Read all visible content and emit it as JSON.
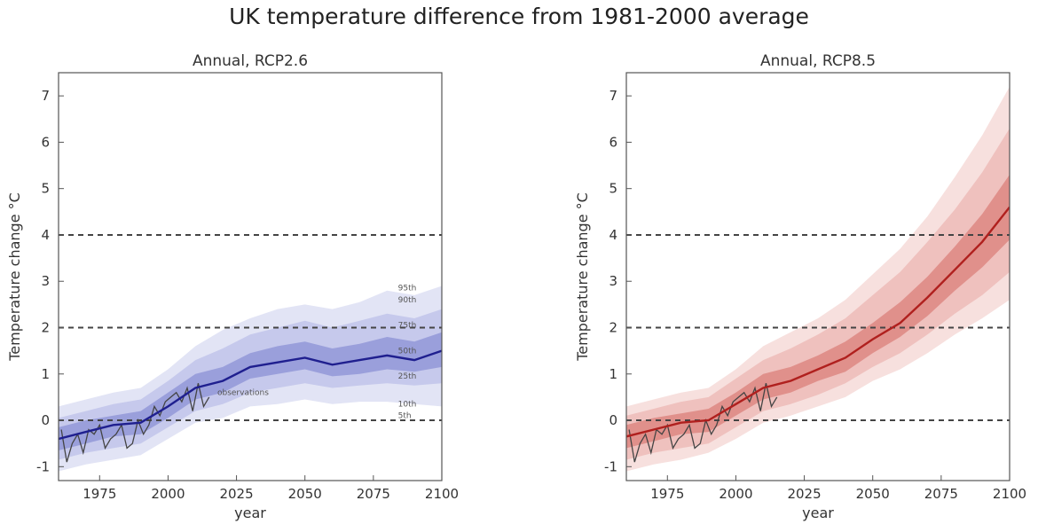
{
  "suptitle": "UK temperature difference from 1981-2000 average",
  "chart_data": [
    {
      "type": "area",
      "title": "Annual, RCP2.6",
      "xlabel": "year",
      "ylabel": "Temperature change °C",
      "xlim": [
        1960,
        2100
      ],
      "ylim": [
        -1.3,
        7.5
      ],
      "xticks": [
        1975,
        2000,
        2025,
        2050,
        2075,
        2100
      ],
      "yticks": [
        -1,
        0,
        1,
        2,
        3,
        4,
        5,
        6,
        7
      ],
      "reference_lines": [
        0,
        2,
        4
      ],
      "colors": {
        "line": "#1f1f8f",
        "outer": "#e2e4f5",
        "middle": "#c6c9ec",
        "inner": "#9a9fdb",
        "obs": "#444444"
      },
      "x": [
        1960,
        1970,
        1980,
        1990,
        2000,
        2010,
        2020,
        2030,
        2040,
        2050,
        2060,
        2070,
        2080,
        2090,
        2100
      ],
      "median": [
        -0.4,
        -0.25,
        -0.1,
        -0.05,
        0.3,
        0.7,
        0.85,
        1.15,
        1.25,
        1.35,
        1.2,
        1.3,
        1.4,
        1.3,
        1.5
      ],
      "p5": [
        -1.1,
        -0.95,
        -0.85,
        -0.75,
        -0.4,
        -0.05,
        0.05,
        0.3,
        0.35,
        0.45,
        0.35,
        0.4,
        0.4,
        0.35,
        0.3
      ],
      "p10": [
        -0.85,
        -0.7,
        -0.6,
        -0.5,
        -0.15,
        0.2,
        0.35,
        0.6,
        0.7,
        0.8,
        0.7,
        0.75,
        0.8,
        0.75,
        0.8
      ],
      "p25": [
        -0.65,
        -0.5,
        -0.35,
        -0.3,
        0.05,
        0.45,
        0.6,
        0.9,
        1.0,
        1.1,
        0.95,
        1.0,
        1.1,
        1.05,
        1.15
      ],
      "p75": [
        -0.15,
        0.0,
        0.1,
        0.2,
        0.6,
        1.0,
        1.15,
        1.45,
        1.6,
        1.7,
        1.55,
        1.65,
        1.8,
        1.7,
        1.9
      ],
      "p90": [
        0.05,
        0.2,
        0.35,
        0.45,
        0.85,
        1.3,
        1.55,
        1.85,
        2.0,
        2.15,
        2.0,
        2.15,
        2.3,
        2.2,
        2.4
      ],
      "p95": [
        0.3,
        0.45,
        0.6,
        0.7,
        1.1,
        1.6,
        1.95,
        2.2,
        2.4,
        2.5,
        2.4,
        2.55,
        2.8,
        2.7,
        2.9
      ],
      "observations": {
        "x": [
          1961,
          1963,
          1965,
          1967,
          1969,
          1971,
          1973,
          1975,
          1977,
          1979,
          1981,
          1983,
          1985,
          1987,
          1989,
          1991,
          1993,
          1995,
          1997,
          1999,
          2001,
          2003,
          2005,
          2007,
          2009,
          2011,
          2013,
          2015
        ],
        "y": [
          -0.2,
          -0.9,
          -0.5,
          -0.3,
          -0.7,
          -0.2,
          -0.3,
          -0.1,
          -0.6,
          -0.4,
          -0.3,
          -0.1,
          -0.6,
          -0.5,
          0.0,
          -0.3,
          -0.1,
          0.3,
          0.1,
          0.4,
          0.5,
          0.6,
          0.4,
          0.7,
          0.2,
          0.8,
          0.3,
          0.5
        ]
      },
      "annotations": [
        {
          "text": "95th",
          "x": 2084,
          "y": 2.8
        },
        {
          "text": "90th",
          "x": 2084,
          "y": 2.55
        },
        {
          "text": "75th",
          "x": 2084,
          "y": 2.0
        },
        {
          "text": "50th",
          "x": 2084,
          "y": 1.45
        },
        {
          "text": "25th",
          "x": 2084,
          "y": 0.9
        },
        {
          "text": "10th",
          "x": 2084,
          "y": 0.3
        },
        {
          "text": "5th",
          "x": 2084,
          "y": 0.05
        },
        {
          "text": "observations",
          "x": 2018,
          "y": 0.55
        }
      ]
    },
    {
      "type": "area",
      "title": "Annual, RCP8.5",
      "xlabel": "year",
      "ylabel": "Temperature change °C",
      "xlim": [
        1960,
        2100
      ],
      "ylim": [
        -1.3,
        7.5
      ],
      "xticks": [
        1975,
        2000,
        2025,
        2050,
        2075,
        2100
      ],
      "yticks": [
        -1,
        0,
        1,
        2,
        3,
        4,
        5,
        6,
        7
      ],
      "reference_lines": [
        0,
        2,
        4
      ],
      "colors": {
        "line": "#b0201e",
        "outer": "#f7e0de",
        "middle": "#efc1be",
        "inner": "#e0908b",
        "obs": "#444444"
      },
      "x": [
        1960,
        1970,
        1980,
        1990,
        2000,
        2010,
        2020,
        2030,
        2040,
        2050,
        2060,
        2070,
        2080,
        2090,
        2100
      ],
      "median": [
        -0.35,
        -0.2,
        -0.05,
        0.0,
        0.35,
        0.7,
        0.85,
        1.1,
        1.35,
        1.75,
        2.1,
        2.65,
        3.25,
        3.85,
        4.6
      ],
      "p5": [
        -1.1,
        -0.95,
        -0.85,
        -0.7,
        -0.4,
        -0.05,
        0.1,
        0.3,
        0.5,
        0.85,
        1.1,
        1.45,
        1.85,
        2.2,
        2.6
      ],
      "p10": [
        -0.85,
        -0.7,
        -0.6,
        -0.5,
        -0.15,
        0.2,
        0.35,
        0.55,
        0.8,
        1.15,
        1.45,
        1.85,
        2.3,
        2.7,
        3.2
      ],
      "p25": [
        -0.6,
        -0.45,
        -0.3,
        -0.25,
        0.1,
        0.45,
        0.6,
        0.85,
        1.05,
        1.45,
        1.8,
        2.25,
        2.8,
        3.3,
        3.9
      ],
      "p75": [
        -0.1,
        0.05,
        0.15,
        0.25,
        0.6,
        1.0,
        1.15,
        1.4,
        1.7,
        2.1,
        2.55,
        3.1,
        3.75,
        4.45,
        5.3
      ],
      "p90": [
        0.1,
        0.25,
        0.4,
        0.5,
        0.9,
        1.3,
        1.55,
        1.85,
        2.2,
        2.7,
        3.2,
        3.85,
        4.55,
        5.35,
        6.3
      ],
      "p95": [
        0.3,
        0.45,
        0.6,
        0.7,
        1.1,
        1.6,
        1.9,
        2.2,
        2.6,
        3.15,
        3.7,
        4.4,
        5.25,
        6.15,
        7.2
      ],
      "observations": {
        "x": [
          1961,
          1963,
          1965,
          1967,
          1969,
          1971,
          1973,
          1975,
          1977,
          1979,
          1981,
          1983,
          1985,
          1987,
          1989,
          1991,
          1993,
          1995,
          1997,
          1999,
          2001,
          2003,
          2005,
          2007,
          2009,
          2011,
          2013,
          2015
        ],
        "y": [
          -0.2,
          -0.9,
          -0.5,
          -0.3,
          -0.7,
          -0.2,
          -0.3,
          -0.1,
          -0.6,
          -0.4,
          -0.3,
          -0.1,
          -0.6,
          -0.5,
          0.0,
          -0.3,
          -0.1,
          0.3,
          0.1,
          0.4,
          0.5,
          0.6,
          0.4,
          0.7,
          0.2,
          0.8,
          0.3,
          0.5
        ]
      },
      "annotations": []
    }
  ]
}
